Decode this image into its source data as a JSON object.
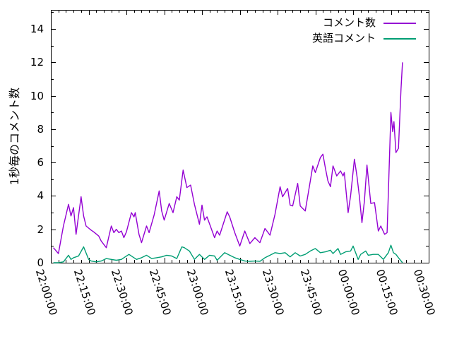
{
  "figure": {
    "background": "#ffffff",
    "axis_color": "#000000",
    "text_color": "#000000"
  },
  "chart_data": {
    "type": "line",
    "title": "",
    "xlabel": "",
    "ylabel": "1秒毎のコメント数",
    "x_tick_labels": [
      "22:00:00",
      "22:15:00",
      "22:30:00",
      "22:45:00",
      "23:00:00",
      "23:15:00",
      "23:30:00",
      "23:45:00",
      "00:00:00",
      "00:15:00",
      "00:30:00"
    ],
    "x_minor_divisions": 5,
    "x_range_minutes": [
      0,
      150
    ],
    "y_ticks": [
      0,
      2,
      4,
      6,
      8,
      10,
      12,
      14
    ],
    "y_minor_divisions": 2,
    "y_range": [
      0,
      15.1
    ],
    "grid": false,
    "legend_position": "top-right-inside",
    "x_unit": "minutes after 22:00:00 (labels shown as HH:MM:SS)",
    "series": [
      {
        "name": "コメント数",
        "color": "#9400d3",
        "points": [
          [
            1,
            0.9
          ],
          [
            3,
            0.55
          ],
          [
            5,
            2.2
          ],
          [
            7,
            3.5
          ],
          [
            8,
            2.8
          ],
          [
            9,
            3.3
          ],
          [
            10,
            1.7
          ],
          [
            12,
            3.95
          ],
          [
            13,
            2.8
          ],
          [
            14,
            2.2
          ],
          [
            16,
            1.95
          ],
          [
            17,
            1.85
          ],
          [
            19,
            1.6
          ],
          [
            20,
            1.3
          ],
          [
            22,
            0.9
          ],
          [
            24,
            2.2
          ],
          [
            25,
            1.8
          ],
          [
            26,
            2.0
          ],
          [
            27,
            1.8
          ],
          [
            28,
            1.9
          ],
          [
            29,
            1.5
          ],
          [
            30,
            1.85
          ],
          [
            32,
            3.0
          ],
          [
            33,
            2.75
          ],
          [
            33.5,
            3.0
          ],
          [
            35,
            1.7
          ],
          [
            36,
            1.2
          ],
          [
            38,
            2.2
          ],
          [
            39,
            1.8
          ],
          [
            41,
            2.85
          ],
          [
            43,
            4.3
          ],
          [
            44,
            3.1
          ],
          [
            45,
            2.55
          ],
          [
            47,
            3.55
          ],
          [
            48.5,
            3.0
          ],
          [
            50,
            3.95
          ],
          [
            51,
            3.75
          ],
          [
            52.5,
            5.55
          ],
          [
            54,
            4.5
          ],
          [
            55.5,
            4.65
          ],
          [
            57,
            3.5
          ],
          [
            59,
            2.3
          ],
          [
            60,
            3.45
          ],
          [
            61,
            2.55
          ],
          [
            62,
            2.75
          ],
          [
            65,
            1.5
          ],
          [
            66,
            1.9
          ],
          [
            67,
            1.65
          ],
          [
            70,
            3.05
          ],
          [
            71,
            2.75
          ],
          [
            73,
            1.8
          ],
          [
            75,
            1.0
          ],
          [
            77,
            1.9
          ],
          [
            79,
            1.15
          ],
          [
            81,
            1.5
          ],
          [
            83,
            1.2
          ],
          [
            85,
            2.05
          ],
          [
            87,
            1.65
          ],
          [
            89,
            2.9
          ],
          [
            91,
            4.55
          ],
          [
            92,
            3.95
          ],
          [
            94,
            4.45
          ],
          [
            95,
            3.45
          ],
          [
            96,
            3.4
          ],
          [
            98,
            4.75
          ],
          [
            99,
            3.4
          ],
          [
            101,
            3.1
          ],
          [
            103,
            4.9
          ],
          [
            104,
            5.8
          ],
          [
            105,
            5.4
          ],
          [
            107,
            6.3
          ],
          [
            108,
            6.5
          ],
          [
            109,
            5.65
          ],
          [
            110,
            4.9
          ],
          [
            111,
            4.55
          ],
          [
            112,
            5.8
          ],
          [
            113.5,
            5.2
          ],
          [
            115,
            5.5
          ],
          [
            116,
            5.2
          ],
          [
            116.5,
            5.4
          ],
          [
            118,
            3.0
          ],
          [
            119,
            4.0
          ],
          [
            120.5,
            6.2
          ],
          [
            121.5,
            5.2
          ],
          [
            122.5,
            3.95
          ],
          [
            123.5,
            2.4
          ],
          [
            124.5,
            3.7
          ],
          [
            125.5,
            5.85
          ],
          [
            127,
            3.55
          ],
          [
            128.5,
            3.6
          ],
          [
            130,
            1.9
          ],
          [
            131,
            2.2
          ],
          [
            132.5,
            1.7
          ],
          [
            133.5,
            1.8
          ],
          [
            135,
            9.0
          ],
          [
            135.7,
            7.85
          ],
          [
            136.2,
            8.45
          ],
          [
            137,
            6.6
          ],
          [
            138,
            6.85
          ],
          [
            139,
            10.4
          ],
          [
            139.6,
            12.0
          ]
        ]
      },
      {
        "name": "英語コメント",
        "color": "#009e73",
        "points": [
          [
            1,
            0
          ],
          [
            3,
            0
          ],
          [
            5,
            0.05
          ],
          [
            7,
            0.45
          ],
          [
            8,
            0.2
          ],
          [
            9,
            0.3
          ],
          [
            11,
            0.4
          ],
          [
            13,
            0.95
          ],
          [
            15,
            0.2
          ],
          [
            16,
            0.1
          ],
          [
            18,
            0.05
          ],
          [
            20,
            0.1
          ],
          [
            22,
            0.25
          ],
          [
            24,
            0.2
          ],
          [
            26,
            0.15
          ],
          [
            28,
            0.2
          ],
          [
            29,
            0.3
          ],
          [
            31,
            0.5
          ],
          [
            33,
            0.3
          ],
          [
            34,
            0.2
          ],
          [
            36,
            0.3
          ],
          [
            38,
            0.45
          ],
          [
            40,
            0.25
          ],
          [
            42,
            0.3
          ],
          [
            44,
            0.35
          ],
          [
            46,
            0.45
          ],
          [
            48,
            0.4
          ],
          [
            50,
            0.25
          ],
          [
            52,
            0.95
          ],
          [
            53,
            0.9
          ],
          [
            55,
            0.7
          ],
          [
            57,
            0.2
          ],
          [
            59,
            0.5
          ],
          [
            61,
            0.2
          ],
          [
            63,
            0.45
          ],
          [
            65,
            0.4
          ],
          [
            66,
            0.15
          ],
          [
            69,
            0.6
          ],
          [
            71,
            0.45
          ],
          [
            73,
            0.3
          ],
          [
            75,
            0.2
          ],
          [
            77,
            0.1
          ],
          [
            79,
            0.08
          ],
          [
            81,
            0.1
          ],
          [
            83,
            0.08
          ],
          [
            85,
            0.3
          ],
          [
            87,
            0.45
          ],
          [
            89,
            0.6
          ],
          [
            91,
            0.55
          ],
          [
            93,
            0.6
          ],
          [
            95,
            0.35
          ],
          [
            97,
            0.6
          ],
          [
            99,
            0.4
          ],
          [
            101,
            0.5
          ],
          [
            103,
            0.7
          ],
          [
            105,
            0.85
          ],
          [
            107,
            0.6
          ],
          [
            109,
            0.65
          ],
          [
            111,
            0.75
          ],
          [
            112,
            0.55
          ],
          [
            114,
            0.85
          ],
          [
            115,
            0.5
          ],
          [
            117,
            0.65
          ],
          [
            119,
            0.7
          ],
          [
            120,
            1.0
          ],
          [
            122,
            0.2
          ],
          [
            123,
            0.5
          ],
          [
            125,
            0.7
          ],
          [
            126,
            0.45
          ],
          [
            128,
            0.5
          ],
          [
            130,
            0.5
          ],
          [
            132,
            0.2
          ],
          [
            134,
            0.6
          ],
          [
            135,
            1.05
          ],
          [
            136,
            0.6
          ],
          [
            137,
            0.5
          ],
          [
            138,
            0.3
          ],
          [
            139.6,
            0
          ]
        ]
      }
    ]
  }
}
